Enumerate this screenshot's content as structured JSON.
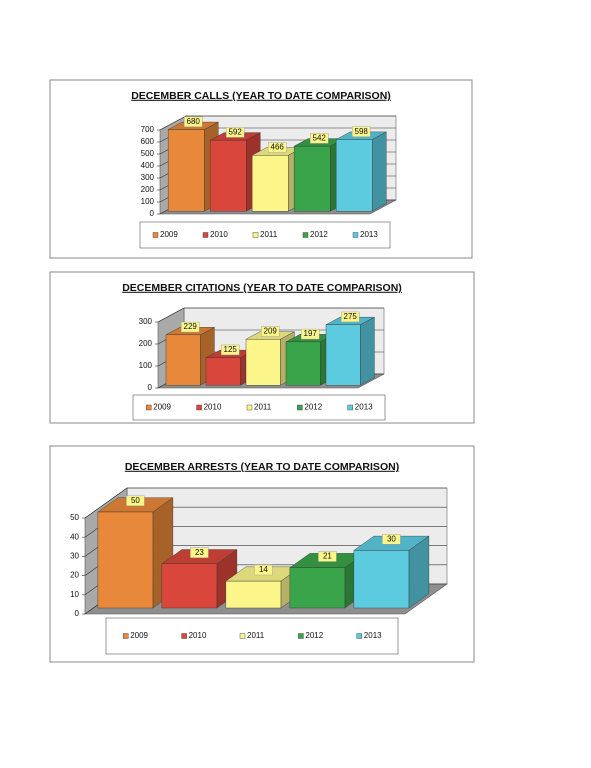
{
  "chart_data": [
    {
      "type": "bar",
      "title": "DECEMBER CALLS (YEAR TO DATE COMPARISON)",
      "series": [
        {
          "name": "2009",
          "color": "#e8883a",
          "values": [
            680
          ]
        },
        {
          "name": "2010",
          "color": "#d9463b",
          "values": [
            592
          ]
        },
        {
          "name": "2011",
          "color": "#fbf58a",
          "values": [
            466
          ]
        },
        {
          "name": "2012",
          "color": "#3aa44a",
          "values": [
            542
          ]
        },
        {
          "name": "2013",
          "color": "#5ccbe0",
          "values": [
            598
          ]
        }
      ],
      "ylim": [
        0,
        700
      ],
      "yticks": [
        0,
        100,
        200,
        300,
        400,
        500,
        600,
        700
      ],
      "grid": true,
      "legend": "bottom"
    },
    {
      "type": "bar",
      "title": "DECEMBER CITATIONS (YEAR TO DATE COMPARISON)",
      "series": [
        {
          "name": "2009",
          "color": "#e8883a",
          "values": [
            229
          ]
        },
        {
          "name": "2010",
          "color": "#d9463b",
          "values": [
            125
          ]
        },
        {
          "name": "2011",
          "color": "#fbf58a",
          "values": [
            209
          ]
        },
        {
          "name": "2012",
          "color": "#3aa44a",
          "values": [
            197
          ]
        },
        {
          "name": "2013",
          "color": "#5ccbe0",
          "values": [
            275
          ]
        }
      ],
      "ylim": [
        0,
        300
      ],
      "yticks": [
        0,
        100,
        200,
        300
      ],
      "grid": true,
      "legend": "bottom"
    },
    {
      "type": "bar",
      "title": "DECEMBER ARRESTS (YEAR TO DATE COMPARISON)",
      "series": [
        {
          "name": "2009",
          "color": "#e8883a",
          "values": [
            50
          ]
        },
        {
          "name": "2010",
          "color": "#d9463b",
          "values": [
            23
          ]
        },
        {
          "name": "2011",
          "color": "#fbf58a",
          "values": [
            14
          ]
        },
        {
          "name": "2012",
          "color": "#3aa44a",
          "values": [
            21
          ]
        },
        {
          "name": "2013",
          "color": "#5ccbe0",
          "values": [
            30
          ]
        }
      ],
      "ylim": [
        0,
        50
      ],
      "yticks": [
        0,
        10,
        20,
        30,
        40,
        50
      ],
      "grid": true,
      "legend": "bottom"
    }
  ]
}
